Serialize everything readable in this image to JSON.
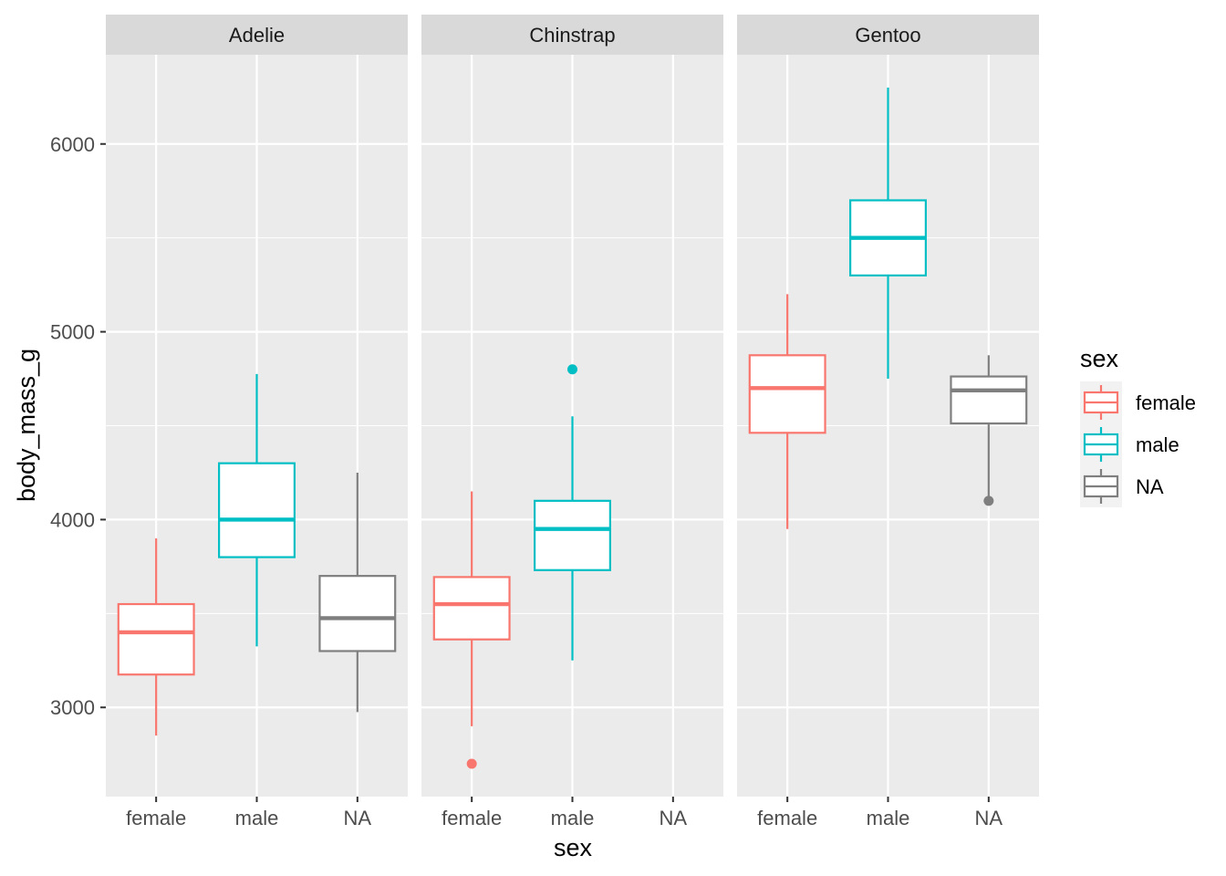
{
  "chart_data": {
    "type": "boxplot",
    "facet_by": "species",
    "xlabel": "sex",
    "ylabel": "body_mass_g",
    "categories": [
      "female",
      "male",
      "NA"
    ],
    "ylim": [
      2525,
      6475
    ],
    "yticks": [
      3000,
      4000,
      5000,
      6000
    ],
    "grid": true,
    "legend": {
      "title": "sex",
      "position": "right",
      "entries": [
        {
          "label": "female",
          "color": "#F8766D"
        },
        {
          "label": "male",
          "color": "#00BFC4"
        },
        {
          "label": "NA",
          "color": "#7F7F7F"
        }
      ]
    },
    "facets": [
      {
        "name": "Adelie",
        "boxes": [
          {
            "category": "female",
            "ymin": 2850,
            "q1": 3175,
            "median": 3400,
            "q3": 3550,
            "ymax": 3900,
            "outliers": []
          },
          {
            "category": "male",
            "ymin": 3325,
            "q1": 3800,
            "median": 4000,
            "q3": 4300,
            "ymax": 4775,
            "outliers": []
          },
          {
            "category": "NA",
            "ymin": 2975,
            "q1": 3300,
            "median": 3475,
            "q3": 3700,
            "ymax": 4250,
            "outliers": []
          }
        ]
      },
      {
        "name": "Chinstrap",
        "boxes": [
          {
            "category": "female",
            "ymin": 2900,
            "q1": 3362,
            "median": 3550,
            "q3": 3694,
            "ymax": 4150,
            "outliers": [
              2700
            ]
          },
          {
            "category": "male",
            "ymin": 3250,
            "q1": 3731,
            "median": 3950,
            "q3": 4100,
            "ymax": 4550,
            "outliers": [
              4800
            ]
          }
        ]
      },
      {
        "name": "Gentoo",
        "boxes": [
          {
            "category": "female",
            "ymin": 3950,
            "q1": 4462,
            "median": 4700,
            "q3": 4875,
            "ymax": 5200,
            "outliers": []
          },
          {
            "category": "male",
            "ymin": 4750,
            "q1": 5300,
            "median": 5500,
            "q3": 5700,
            "ymax": 6300,
            "outliers": []
          },
          {
            "category": "NA",
            "ymin": 4100,
            "q1": 4512,
            "median": 4688,
            "q3": 4762,
            "ymax": 4875,
            "outliers": [
              4100
            ]
          }
        ]
      }
    ]
  },
  "colors": {
    "female": "#F8766D",
    "male": "#00BFC4",
    "NA": "#7F7F7F",
    "panel_bg": "#EBEBEB",
    "strip_bg": "#D9D9D9",
    "grid": "#FFFFFF"
  }
}
